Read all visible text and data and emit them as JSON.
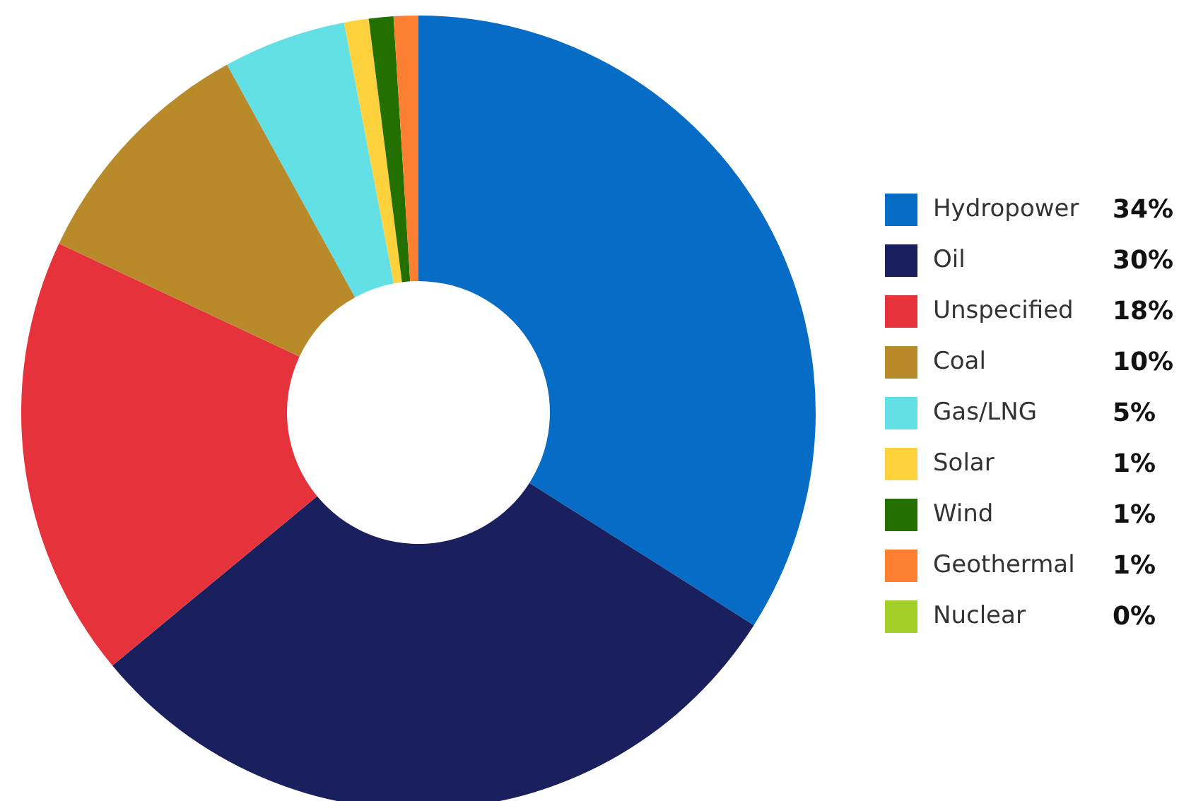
{
  "chart_data": {
    "type": "donut",
    "categories": [
      "Hydropower",
      "Oil",
      "Unspecified",
      "Coal",
      "Gas/LNG",
      "Solar",
      "Wind",
      "Geothermal",
      "Nuclear"
    ],
    "values": [
      34,
      30,
      18,
      10,
      5,
      1,
      1,
      1,
      0
    ],
    "colors": [
      "#066cc5",
      "#1a1f5e",
      "#e6323b",
      "#b98a29",
      "#62e0e6",
      "#fdd23c",
      "#237000",
      "#fd8032",
      "#a4cf2b"
    ],
    "value_labels": [
      "34%",
      "30%",
      "18%",
      "10%",
      "5%",
      "1%",
      "1%",
      "1%",
      "0%"
    ],
    "data_labels": true,
    "legend": "right"
  }
}
